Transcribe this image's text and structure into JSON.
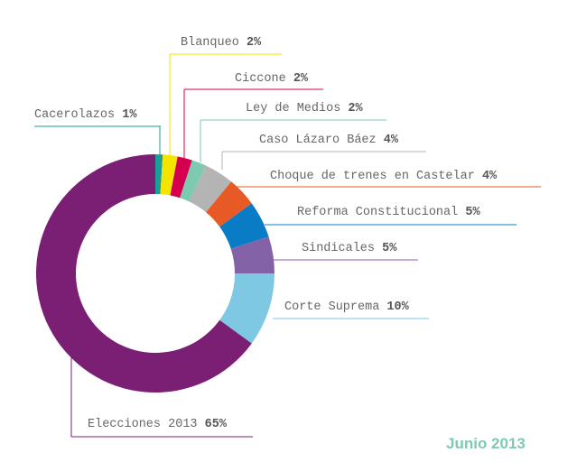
{
  "chart_data": {
    "type": "pie",
    "variant": "donut",
    "categories": [
      "Cacerolazos",
      "Blanqueo",
      "Ciccone",
      "Ley de Medios",
      "Caso Lázaro Báez",
      "Choque de trenes en Castelar",
      "Reforma Constitucional",
      "Sindicales",
      "Corte Suprema",
      "Elecciones 2013"
    ],
    "values": [
      1,
      2,
      2,
      2,
      4,
      4,
      5,
      5,
      10,
      65
    ],
    "value_labels": [
      "1%",
      "2%",
      "2%",
      "2%",
      "4%",
      "4%",
      "5%",
      "5%",
      "10%",
      "65%"
    ],
    "colors": [
      "#1a9e9a",
      "#f5e400",
      "#d4004f",
      "#7ecab0",
      "#b4b4b4",
      "#e85a25",
      "#0a7cc6",
      "#8462a8",
      "#7ec8e3",
      "#7a1f74"
    ],
    "direction": "clockwise from top",
    "legend": "leader-line labels"
  },
  "date_label": "Junio 2013"
}
